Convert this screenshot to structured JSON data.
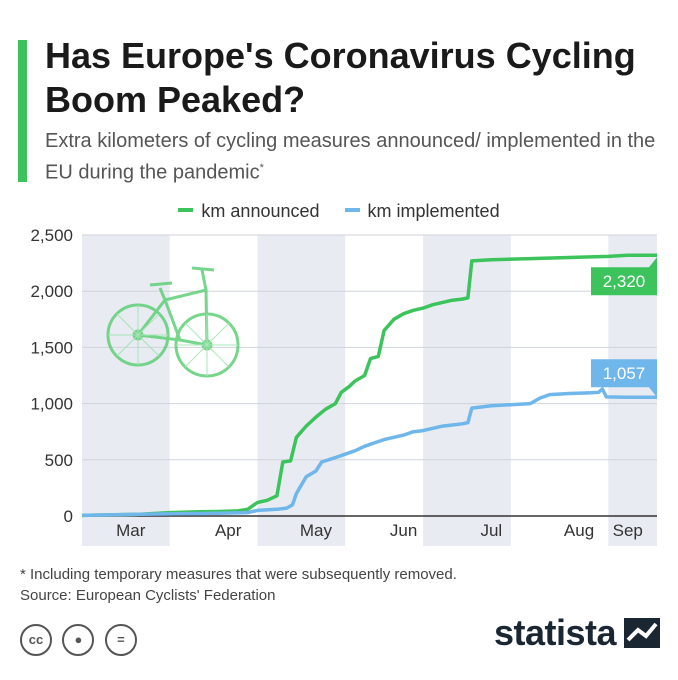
{
  "header": {
    "title": "Has Europe's Coronavirus Cycling Boom Peaked?",
    "subtitle": "Extra kilometers of cycling measures announced/ implemented in the EU during the pandemic",
    "subtitle_marker": "*"
  },
  "colors": {
    "accent": "#3cc35c",
    "announced": "#3cc35c",
    "implemented": "#6fb6ea",
    "band": "#e8ebf2"
  },
  "footer": {
    "note": "* Including temporary measures that were subsequently removed.",
    "source": "Source: European Cyclists' Federation",
    "brand": "statista",
    "license_icons": [
      "cc-icon",
      "by-icon",
      "nd-icon"
    ]
  },
  "chart_data": {
    "type": "line",
    "x_unit": "week of 2020",
    "x_range": [
      0,
      28
    ],
    "ylim": [
      0,
      2500
    ],
    "y_ticks": [
      0,
      500,
      1000,
      1500,
      2000,
      2500
    ],
    "month_labels": [
      {
        "label": "Mar",
        "x": 2.5
      },
      {
        "label": "Apr",
        "x": 7.5
      },
      {
        "label": "May",
        "x": 12
      },
      {
        "label": "Jun",
        "x": 16.5
      },
      {
        "label": "Jul",
        "x": 21
      },
      {
        "label": "Aug",
        "x": 25.5
      },
      {
        "label": "Sep",
        "x": 28
      }
    ],
    "shaded_months": [
      [
        0,
        4.5
      ],
      [
        9,
        13.5
      ],
      [
        17.5,
        22
      ],
      [
        27,
        29.5
      ]
    ],
    "legend_position": "top-center",
    "series": [
      {
        "name": "km announced",
        "end_label": "2,320",
        "points": [
          [
            0,
            5
          ],
          [
            3,
            15
          ],
          [
            4.5,
            30
          ],
          [
            6,
            38
          ],
          [
            7,
            40
          ],
          [
            8,
            45
          ],
          [
            8.5,
            60
          ],
          [
            9,
            120
          ],
          [
            9.5,
            140
          ],
          [
            10,
            180
          ],
          [
            10.3,
            480
          ],
          [
            10.7,
            490
          ],
          [
            11,
            700
          ],
          [
            11.5,
            800
          ],
          [
            12,
            880
          ],
          [
            12.5,
            950
          ],
          [
            13,
            1000
          ],
          [
            13.3,
            1100
          ],
          [
            13.7,
            1150
          ],
          [
            14,
            1200
          ],
          [
            14.5,
            1250
          ],
          [
            14.8,
            1400
          ],
          [
            15.2,
            1420
          ],
          [
            15.5,
            1650
          ],
          [
            16,
            1750
          ],
          [
            16.5,
            1800
          ],
          [
            17,
            1830
          ],
          [
            17.5,
            1850
          ],
          [
            18,
            1880
          ],
          [
            18.5,
            1900
          ],
          [
            19,
            1920
          ],
          [
            19.5,
            1930
          ],
          [
            19.8,
            1940
          ],
          [
            20,
            2270
          ],
          [
            21,
            2280
          ],
          [
            23,
            2290
          ],
          [
            25,
            2300
          ],
          [
            27,
            2310
          ],
          [
            28,
            2320
          ],
          [
            29.5,
            2320
          ]
        ]
      },
      {
        "name": "km implemented",
        "end_label": "1,057",
        "points": [
          [
            0,
            5
          ],
          [
            3,
            15
          ],
          [
            5,
            20
          ],
          [
            7,
            25
          ],
          [
            8.5,
            30
          ],
          [
            9,
            50
          ],
          [
            10,
            60
          ],
          [
            10.5,
            70
          ],
          [
            10.8,
            100
          ],
          [
            11,
            200
          ],
          [
            11.5,
            350
          ],
          [
            12,
            400
          ],
          [
            12.3,
            480
          ],
          [
            13,
            520
          ],
          [
            13.5,
            550
          ],
          [
            14,
            580
          ],
          [
            14.5,
            620
          ],
          [
            15,
            650
          ],
          [
            15.5,
            680
          ],
          [
            16,
            700
          ],
          [
            16.5,
            720
          ],
          [
            17,
            750
          ],
          [
            17.5,
            760
          ],
          [
            18,
            780
          ],
          [
            18.5,
            800
          ],
          [
            19,
            810
          ],
          [
            19.5,
            820
          ],
          [
            19.8,
            830
          ],
          [
            20,
            960
          ],
          [
            21,
            980
          ],
          [
            22,
            990
          ],
          [
            23,
            1000
          ],
          [
            23.5,
            1050
          ],
          [
            24,
            1080
          ],
          [
            25,
            1090
          ],
          [
            26,
            1095
          ],
          [
            26.5,
            1100
          ],
          [
            26.7,
            1130
          ],
          [
            26.9,
            1060
          ],
          [
            28,
            1057
          ],
          [
            29.5,
            1057
          ]
        ]
      }
    ]
  }
}
